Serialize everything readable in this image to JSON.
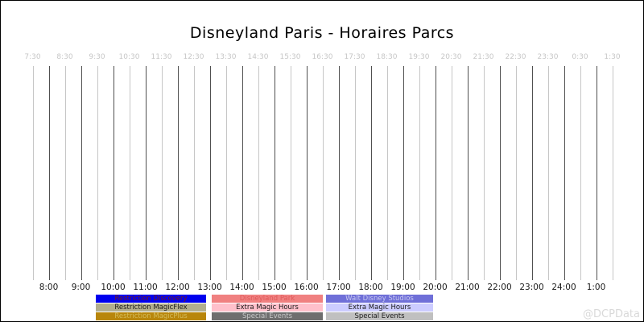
{
  "chart_data": {
    "type": "bar",
    "subtype": "gantt-style park-hours timeline; plot area is empty (no bars rendered), only the time grid and legend are visible",
    "title": "Disneyland Paris - Horaires Parcs",
    "watermark": "@DCPData",
    "x_range_hours": [
      7.5,
      25.5
    ],
    "tick_interval_minutes": 30,
    "grid": {
      "on": true,
      "orientation": "vertical",
      "half_hour_line_color": "#c6c6c6",
      "hour_line_color": "#505050"
    },
    "x_ticks_top": [
      "7:30",
      "8:30",
      "9:30",
      "10:30",
      "11:30",
      "12:30",
      "13:30",
      "14:30",
      "15:30",
      "16:30",
      "17:30",
      "18:30",
      "19:30",
      "20:30",
      "21:30",
      "22:30",
      "23:30",
      "0:30",
      "1:30"
    ],
    "x_ticks_bottom": [
      "8:00",
      "9:00",
      "10:00",
      "11:00",
      "12:00",
      "13:00",
      "14:00",
      "15:00",
      "16:00",
      "17:00",
      "18:00",
      "19:00",
      "20:00",
      "21:00",
      "22:00",
      "23:00",
      "24:00",
      "1:00"
    ],
    "series": [],
    "legend_position": "bottom",
    "legend_columns": [
      {
        "items": [
          {
            "label": "Restriction Discovery",
            "bg": "#0000ee",
            "fg": "#7a1a14"
          },
          {
            "label": "Restriction MagicFlex",
            "bg": "#b2ae8e",
            "fg": "#1a1a1a"
          },
          {
            "label": "Restriction MagicPlus",
            "bg": "#b8860b",
            "fg": "#d4bc5a"
          }
        ]
      },
      {
        "items": [
          {
            "label": "Disneyland Park",
            "bg": "#f08080",
            "fg": "#e05a5a"
          },
          {
            "label": "Extra Magic Hours",
            "bg": "#ffc0cb",
            "fg": "#1a1a1a"
          },
          {
            "label": "Special Events",
            "bg": "#6e6e6e",
            "fg": "#c9c9c9"
          }
        ]
      },
      {
        "items": [
          {
            "label": "Walt Disney Studios",
            "bg": "#6f6fd8",
            "fg": "#c8c8f0"
          },
          {
            "label": "Extra Magic Hours",
            "bg": "#ccccff",
            "fg": "#1a1a1a"
          },
          {
            "label": "Special Events",
            "bg": "#c0c0c0",
            "fg": "#1a1a1a"
          }
        ]
      }
    ],
    "colors": {
      "background": "#ffffff",
      "border": "#000000",
      "top_tick_text": "#c6c6c6",
      "bottom_tick_text": "#1a1a1a",
      "title_text": "#000000",
      "watermark_text": "#d9d9d9"
    }
  }
}
